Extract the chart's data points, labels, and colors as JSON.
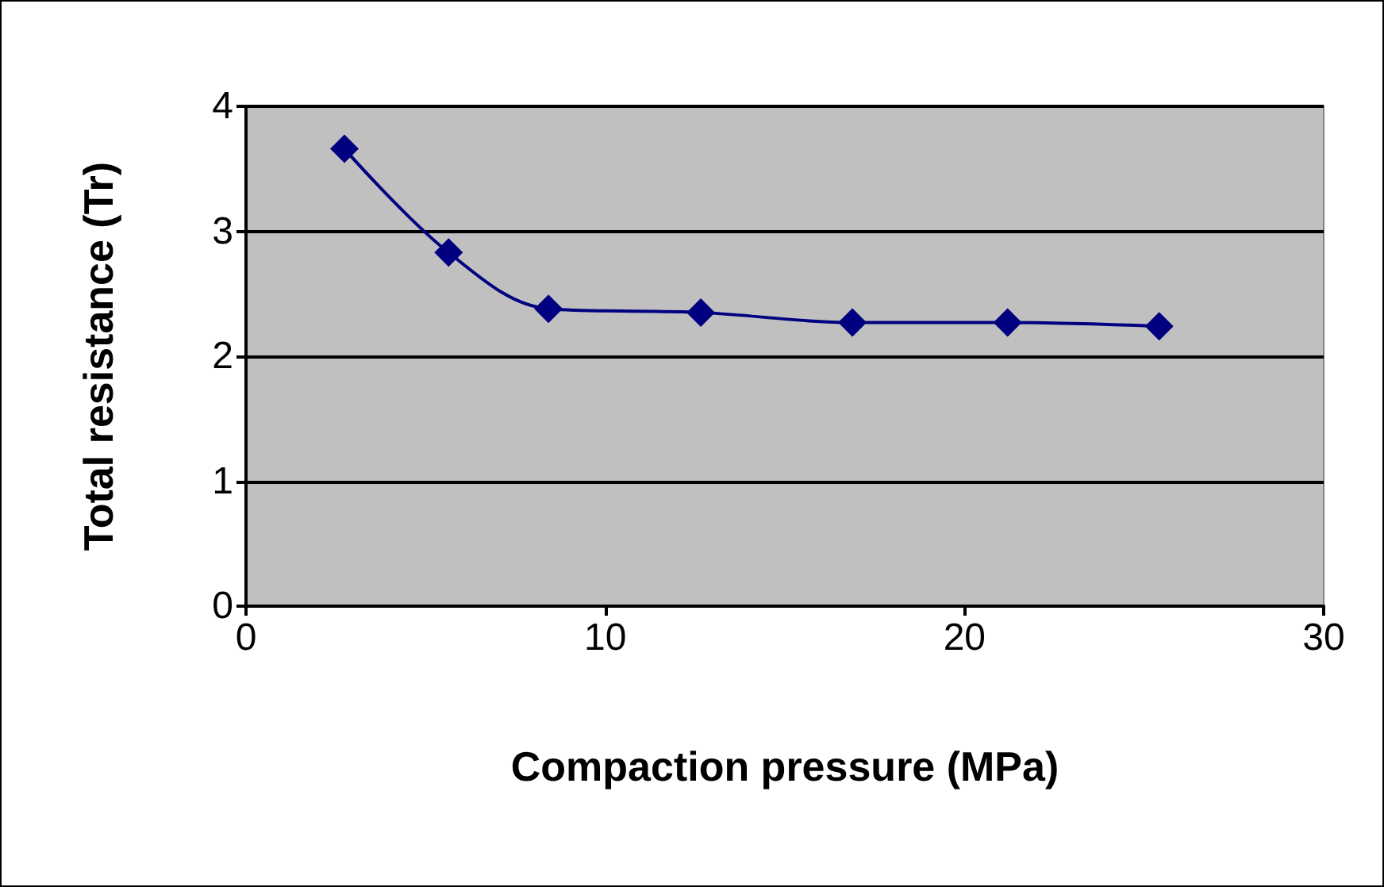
{
  "chart_data": {
    "type": "line",
    "xlabel": "Compaction pressure (MPa)",
    "ylabel": "Total resistance (Tr)",
    "x": [
      2.74,
      5.64,
      8.42,
      12.66,
      16.88,
      21.2,
      25.42
    ],
    "series": [
      {
        "color": "#000080",
        "values": [
          3.66,
          2.83,
          2.38,
          2.35,
          2.27,
          2.27,
          2.24
        ]
      }
    ],
    "xlim": [
      0,
      30
    ],
    "xticks": [
      0,
      10,
      20,
      30
    ],
    "ylim": [
      0,
      4
    ],
    "yticks": [
      0,
      1,
      2,
      3,
      4
    ],
    "grid": "y",
    "marker": "diamond",
    "line_style": "solid"
  }
}
